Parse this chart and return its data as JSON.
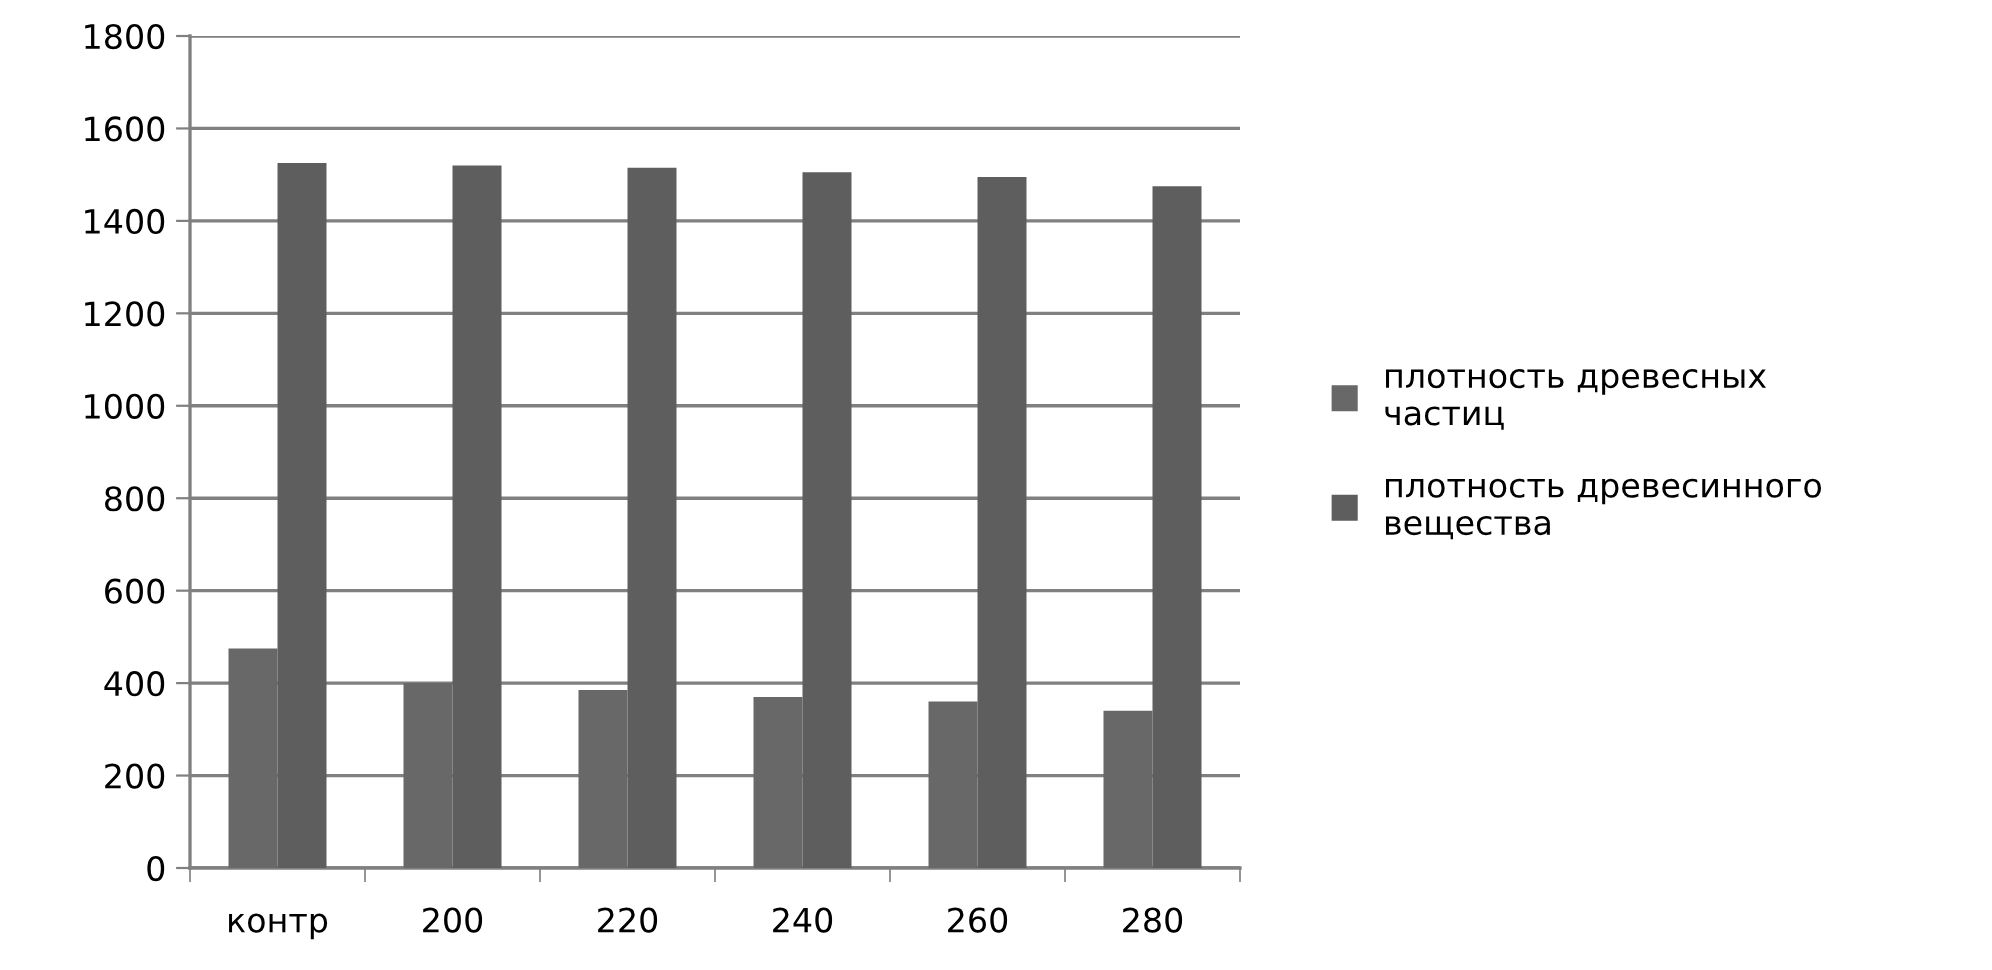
{
  "chart_data": {
    "type": "bar",
    "categories": [
      "контр",
      "200",
      "220",
      "240",
      "260",
      "280"
    ],
    "series": [
      {
        "name": "плотность древесных частиц",
        "color": "#686868",
        "values": [
          475,
          400,
          385,
          370,
          360,
          340
        ]
      },
      {
        "name": "плотность древесинного вещества",
        "color": "#5e5e5e",
        "values": [
          1525,
          1520,
          1515,
          1505,
          1495,
          1475
        ]
      }
    ],
    "ylim": [
      0,
      1800
    ],
    "yticks": [
      0,
      200,
      400,
      600,
      800,
      1000,
      1200,
      1400,
      1600,
      1800
    ],
    "grid": "y",
    "legend": "right"
  }
}
